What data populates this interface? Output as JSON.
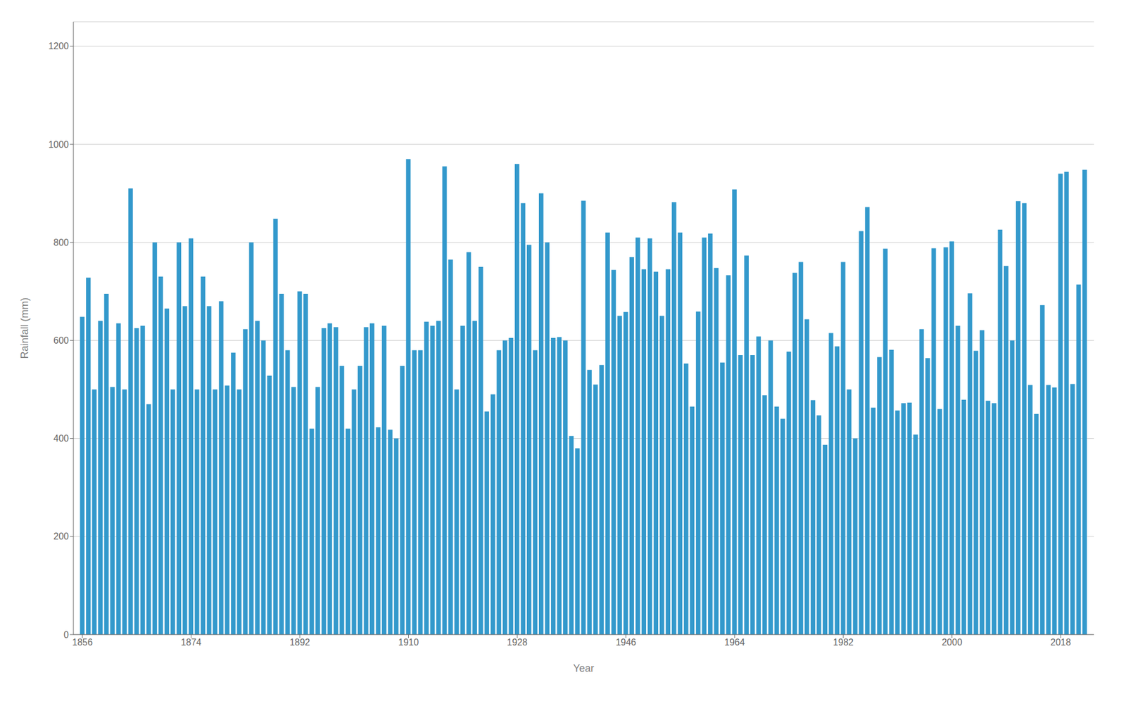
{
  "chart_data": {
    "type": "bar",
    "xlabel": "Year",
    "ylabel": "Rainfall (mm)",
    "color": "#3399CC",
    "grid": "y",
    "xlim": [
      1854.5,
      2023.5
    ],
    "xticks": [
      1856,
      1874,
      1892,
      1910,
      1928,
      1946,
      1964,
      1982,
      2000,
      2018
    ],
    "ylim": [
      0,
      1250
    ],
    "yticks": [
      0,
      200,
      400,
      600,
      800,
      1000,
      1200
    ],
    "x": [
      1856,
      1857,
      1858,
      1859,
      1860,
      1861,
      1862,
      1863,
      1864,
      1865,
      1866,
      1867,
      1868,
      1869,
      1870,
      1871,
      1872,
      1873,
      1874,
      1875,
      1876,
      1877,
      1878,
      1879,
      1880,
      1881,
      1882,
      1883,
      1884,
      1885,
      1886,
      1887,
      1888,
      1889,
      1890,
      1891,
      1892,
      1893,
      1894,
      1895,
      1896,
      1897,
      1898,
      1899,
      1900,
      1901,
      1902,
      1903,
      1904,
      1905,
      1906,
      1907,
      1908,
      1909,
      1910,
      1911,
      1912,
      1913,
      1914,
      1915,
      1916,
      1917,
      1918,
      1919,
      1920,
      1921,
      1922,
      1923,
      1924,
      1925,
      1926,
      1927,
      1928,
      1929,
      1930,
      1931,
      1932,
      1933,
      1934,
      1935,
      1936,
      1937,
      1938,
      1939,
      1940,
      1941,
      1942,
      1943,
      1944,
      1945,
      1946,
      1947,
      1948,
      1949,
      1950,
      1951,
      1952,
      1953,
      1954,
      1955,
      1956,
      1957,
      1958,
      1959,
      1960,
      1961,
      1962,
      1963,
      1964,
      1965,
      1966,
      1967,
      1968,
      1969,
      1970,
      1971,
      1972,
      1973,
      1974,
      1975,
      1976,
      1977,
      1978,
      1979,
      1980,
      1981,
      1982,
      1983,
      1984,
      1985,
      1986,
      1987,
      1988,
      1989,
      1990,
      1991,
      1992,
      1993,
      1994,
      1995,
      1996,
      1997,
      1998,
      1999,
      2000,
      2001,
      2002,
      2003,
      2004,
      2005,
      2006,
      2007,
      2008,
      2009,
      2010,
      2011,
      2012,
      2013,
      2014,
      2015,
      2016,
      2017,
      2018,
      2019,
      2020,
      2021,
      2022
    ],
    "values": [
      648,
      728,
      500,
      640,
      695,
      505,
      635,
      500,
      910,
      625,
      630,
      470,
      800,
      730,
      665,
      500,
      800,
      670,
      808,
      500,
      730,
      670,
      500,
      680,
      508,
      575,
      500,
      623,
      800,
      640,
      600,
      528,
      848,
      695,
      580,
      505,
      700,
      695,
      420,
      505,
      625,
      635,
      627,
      548,
      420,
      500,
      548,
      627,
      635,
      423,
      630,
      418,
      400,
      548,
      970,
      580,
      580,
      638,
      630,
      640,
      955,
      765,
      500,
      630,
      780,
      640,
      750,
      455,
      490,
      580,
      600,
      605,
      960,
      880,
      795,
      580,
      900,
      800,
      605,
      607,
      600,
      405,
      380,
      885,
      540,
      510,
      550,
      820,
      744,
      650,
      658,
      770,
      810,
      745,
      808,
      740,
      650,
      745,
      882,
      820,
      553,
      465,
      659,
      810,
      818,
      748,
      555,
      733,
      908,
      570,
      773,
      570,
      608,
      488,
      600,
      465,
      440,
      577,
      738,
      760,
      643,
      478,
      447,
      387,
      615,
      588,
      760,
      500,
      400,
      823,
      872,
      463,
      566,
      787,
      581,
      457,
      472,
      473,
      408,
      623,
      564,
      788,
      460,
      790,
      802,
      630,
      479,
      696,
      579,
      621,
      477,
      472,
      826,
      752,
      600,
      884,
      880,
      509,
      450,
      672,
      509,
      504,
      940,
      944,
      511,
      714,
      948
    ]
  }
}
